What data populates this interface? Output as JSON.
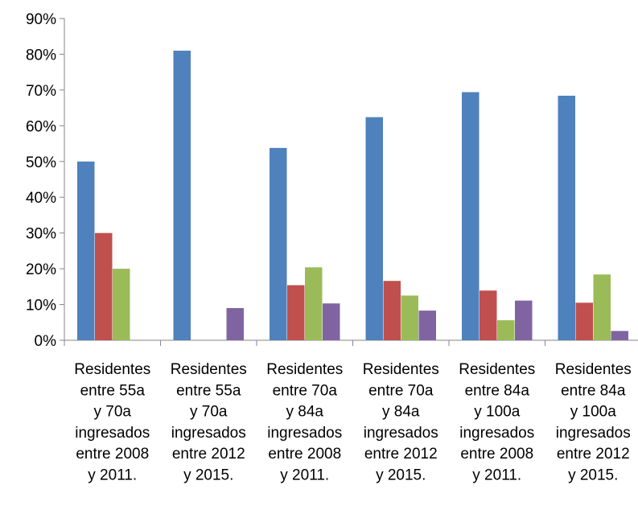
{
  "chart_data": {
    "type": "bar",
    "title": "",
    "xlabel": "",
    "ylabel": "",
    "ylim": [
      0,
      90
    ],
    "yticks": [
      "0%",
      "10%",
      "20%",
      "30%",
      "40%",
      "50%",
      "60%",
      "70%",
      "80%",
      "90%"
    ],
    "ytick_values": [
      0,
      10,
      20,
      30,
      40,
      50,
      60,
      70,
      80,
      90
    ],
    "grid": false,
    "legend": "none",
    "categories": [
      "Residentes entre 55a y 70a ingresados entre 2008 y 2011.",
      "Residentes entre 55a y 70a ingresados entre 2012 y 2015.",
      "Residentes entre 70a y 84a ingresados entre 2008 y 2011.",
      "Residentes entre 70a y 84a ingresados entre 2012 y 2015.",
      "Residentes entre 84a y 100a ingresados entre 2008 y 2011.",
      "Residentes entre 84a y 100a ingresados entre 2012 y 2015."
    ],
    "category_lines": [
      [
        "Residentes",
        "entre 55a",
        "y 70a",
        "ingresados",
        "entre 2008",
        "y 2011."
      ],
      [
        "Residentes",
        "entre 55a",
        "y 70a",
        "ingresados",
        "entre 2012",
        "y 2015."
      ],
      [
        "Residentes",
        "entre 70a",
        "y 84a",
        "ingresados",
        "entre 2008",
        "y 2011."
      ],
      [
        "Residentes",
        "entre 70a",
        "y 84a",
        "ingresados",
        "entre 2012",
        "y 2015."
      ],
      [
        "Residentes",
        "entre 84a",
        "y 100a",
        "ingresados",
        "entre 2008",
        "y 2011."
      ],
      [
        "Residentes",
        "entre 84a",
        "y 100a",
        "ingresados",
        "entre 2012",
        "y 2015."
      ]
    ],
    "series": [
      {
        "color": "#4F81BD",
        "values": [
          50.0,
          81.0,
          53.8,
          62.4,
          69.4,
          68.4
        ]
      },
      {
        "color": "#C0504D",
        "values": [
          30.0,
          0,
          15.4,
          16.6,
          13.9,
          10.5
        ]
      },
      {
        "color": "#9BBB59",
        "values": [
          20.0,
          0,
          20.4,
          12.5,
          5.6,
          18.4
        ]
      },
      {
        "color": "#8064A2",
        "values": [
          0,
          9.0,
          10.3,
          8.3,
          11.1,
          2.6
        ]
      }
    ]
  }
}
